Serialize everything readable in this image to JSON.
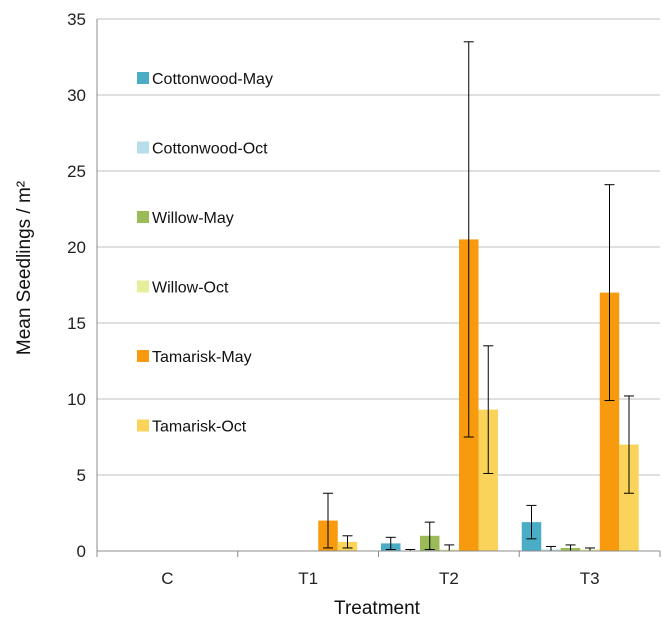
{
  "chart_data": {
    "type": "bar",
    "xlabel": "Treatment",
    "ylabel": "Mean Seedlings / m²",
    "ylim": [
      0,
      35
    ],
    "yticks": [
      0,
      5,
      10,
      15,
      20,
      25,
      30,
      35
    ],
    "grid": true,
    "legend_position": "left inside plot",
    "categories": [
      "C",
      "T1",
      "T2",
      "T3"
    ],
    "series": [
      {
        "name": "Cottonwood-May",
        "color": "#4bacc6",
        "values": [
          0,
          0,
          0.5,
          1.9
        ],
        "errors": [
          0,
          0,
          0.4,
          1.1
        ]
      },
      {
        "name": "Cottonwood-Oct",
        "color": "#b7dee8",
        "values": [
          0,
          0,
          0.0,
          0.1
        ],
        "errors": [
          0,
          0,
          0.1,
          0.2
        ]
      },
      {
        "name": "Willow-May",
        "color": "#9bbb59",
        "values": [
          0,
          0,
          1.0,
          0.2
        ],
        "errors": [
          0,
          0,
          0.9,
          0.2
        ]
      },
      {
        "name": "Willow-Oct",
        "color": "#e6ee9c",
        "values": [
          0,
          0,
          0.1,
          0.1
        ],
        "errors": [
          0,
          0,
          0.3,
          0.1
        ]
      },
      {
        "name": "Tamarisk-May",
        "color": "#f79a0e",
        "values": [
          0,
          2.0,
          20.5,
          17.0
        ],
        "errors": [
          0,
          1.8,
          13.0,
          7.1
        ]
      },
      {
        "name": "Tamarisk-Oct",
        "color": "#f9d35a",
        "values": [
          0,
          0.6,
          9.3,
          7.0
        ],
        "errors": [
          0,
          0.4,
          4.2,
          3.2
        ]
      }
    ]
  }
}
